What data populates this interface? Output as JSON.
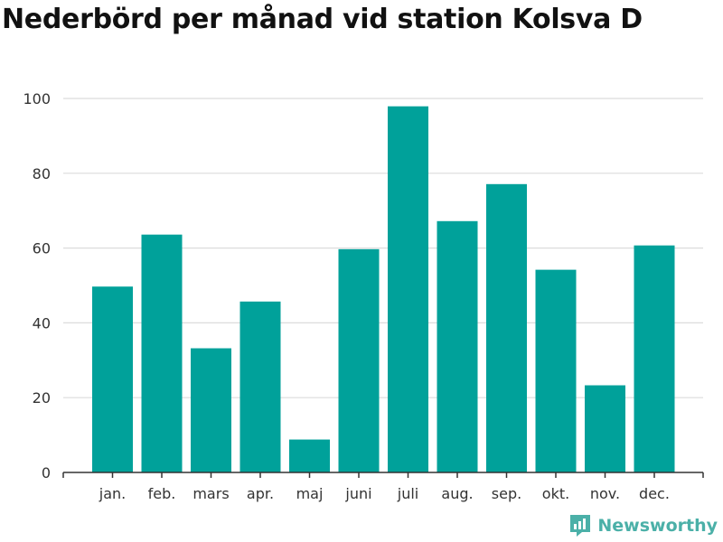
{
  "title": "Nederbörd per månad vid station Kolsva D",
  "brand": {
    "name": "Newsworthy",
    "icon": "newsworthy-logo-icon",
    "color": "#4bb0a8"
  },
  "chart_data": {
    "type": "bar",
    "categories": [
      "jan.",
      "feb.",
      "mars",
      "apr.",
      "maj",
      "juni",
      "juli",
      "aug.",
      "sep.",
      "okt.",
      "nov.",
      "dec."
    ],
    "values": [
      49.7,
      63.6,
      33.2,
      45.7,
      8.8,
      59.7,
      97.9,
      67.2,
      77.1,
      54.2,
      23.3,
      60.7
    ],
    "ylim": [
      0,
      100
    ],
    "yticks": [
      0,
      20,
      40,
      60,
      80,
      100
    ],
    "xlabel": "",
    "ylabel": "",
    "grid": true,
    "bar_color": "#00a19a"
  }
}
